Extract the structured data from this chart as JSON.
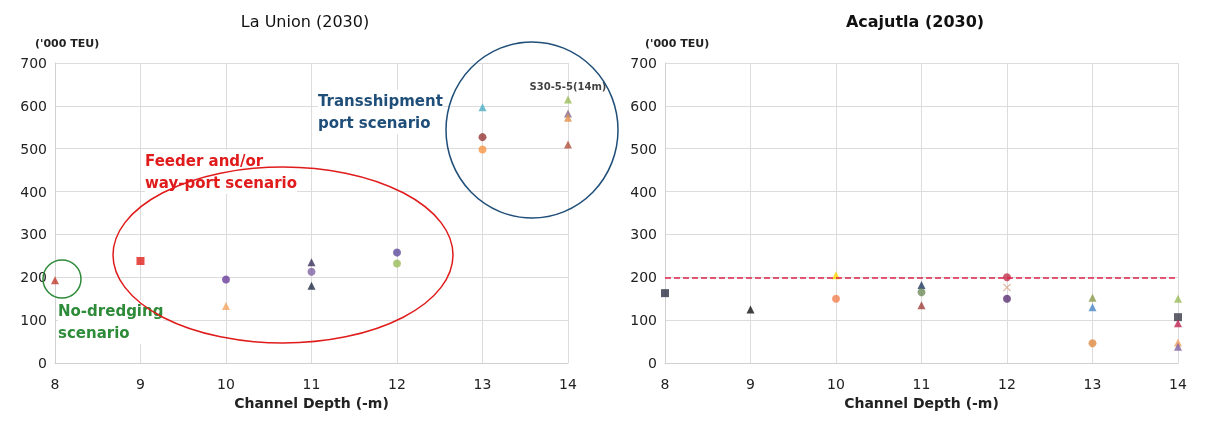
{
  "chart_data": [
    {
      "type": "scatter",
      "title": "La Union (2030)",
      "xlabel": "Channel Depth (-m)",
      "ylabel": "('000 TEU)",
      "xlim": [
        8,
        14
      ],
      "xticks": [
        8,
        9,
        10,
        11,
        12,
        13,
        14
      ],
      "ylim": [
        0,
        700
      ],
      "yticks": [
        0,
        100,
        200,
        300,
        400,
        500,
        600,
        700
      ],
      "grid": true,
      "annotations": [
        "Transshipment port scenario",
        "Feeder and/or way-port scenario",
        "No-dredging scenario",
        {
          "text": "S30-5-5(14m)",
          "x": 14,
          "y": 615
        }
      ],
      "series": [
        {
          "x": [
            8
          ],
          "values": [
            193
          ],
          "color": "#c0392b",
          "marker": "triangle"
        },
        {
          "x": [
            9
          ],
          "values": [
            238
          ],
          "color": "#e0201b",
          "marker": "square"
        },
        {
          "x": [
            10
          ],
          "values": [
            195
          ],
          "color": "#6a3d9a",
          "marker": "circle"
        },
        {
          "x": [
            10
          ],
          "values": [
            133
          ],
          "color": "#f4a460",
          "marker": "triangle"
        },
        {
          "x": [
            11
          ],
          "values": [
            235
          ],
          "color": "#3b2e5a",
          "marker": "triangle"
        },
        {
          "x": [
            11
          ],
          "values": [
            213
          ],
          "color": "#8064a2",
          "marker": "circle"
        },
        {
          "x": [
            11
          ],
          "values": [
            180
          ],
          "color": "#1f2a44",
          "marker": "triangle"
        },
        {
          "x": [
            12
          ],
          "values": [
            258
          ],
          "color": "#5b4a9b",
          "marker": "circle"
        },
        {
          "x": [
            12
          ],
          "values": [
            232
          ],
          "color": "#9bbb59",
          "marker": "circle"
        },
        {
          "x": [
            13
          ],
          "values": [
            597
          ],
          "color": "#4bacc6",
          "marker": "triangle"
        },
        {
          "x": [
            13
          ],
          "values": [
            527
          ],
          "color": "#943634",
          "marker": "circle"
        },
        {
          "x": [
            13
          ],
          "values": [
            498
          ],
          "color": "#f79646",
          "marker": "circle"
        },
        {
          "x": [
            14
          ],
          "values": [
            615
          ],
          "color": "#9bbb59",
          "marker": "triangle"
        },
        {
          "x": [
            14
          ],
          "values": [
            582
          ],
          "color": "#8b6a8a",
          "marker": "triangle"
        },
        {
          "x": [
            14
          ],
          "values": [
            572
          ],
          "color": "#e0904a",
          "marker": "triangle"
        },
        {
          "x": [
            14
          ],
          "values": [
            510
          ],
          "color": "#b0503c",
          "marker": "triangle"
        }
      ]
    },
    {
      "type": "scatter",
      "title": "Acajutla (2030)",
      "xlabel": "Channel Depth (-m)",
      "ylabel": "('000 TEU)",
      "xlim": [
        8,
        14
      ],
      "xticks": [
        8,
        9,
        10,
        11,
        12,
        13,
        14
      ],
      "ylim": [
        0,
        700
      ],
      "yticks": [
        0,
        100,
        200,
        300,
        400,
        500,
        600,
        700
      ],
      "grid": true,
      "ref_lines": [
        {
          "axis": "y",
          "value": 200,
          "color": "#e0204a",
          "line_style": "dashed"
        }
      ],
      "series": [
        {
          "x": [
            8
          ],
          "values": [
            163
          ],
          "color": "#2a2f45",
          "marker": "square"
        },
        {
          "x": [
            9
          ],
          "values": [
            125
          ],
          "color": "#111111",
          "marker": "triangle"
        },
        {
          "x": [
            10
          ],
          "values": [
            205
          ],
          "color": "#ffd700",
          "marker": "triangle"
        },
        {
          "x": [
            10
          ],
          "values": [
            150
          ],
          "color": "#f08050",
          "marker": "circle"
        },
        {
          "x": [
            11
          ],
          "values": [
            182
          ],
          "color": "#1f3a5f",
          "marker": "triangle"
        },
        {
          "x": [
            11
          ],
          "values": [
            165
          ],
          "color": "#6e8b5a",
          "marker": "circle"
        },
        {
          "x": [
            11
          ],
          "values": [
            135
          ],
          "color": "#a0403a",
          "marker": "triangle"
        },
        {
          "x": [
            12
          ],
          "values": [
            200
          ],
          "color": "#c0304a",
          "marker": "circle"
        },
        {
          "x": [
            12
          ],
          "values": [
            176
          ],
          "color": "#d2a080",
          "marker": "cross"
        },
        {
          "x": [
            12
          ],
          "values": [
            150
          ],
          "color": "#5a2e70",
          "marker": "circle"
        },
        {
          "x": [
            13
          ],
          "values": [
            152
          ],
          "color": "#8a9a4a",
          "marker": "triangle"
        },
        {
          "x": [
            13
          ],
          "values": [
            130
          ],
          "color": "#4a86c6",
          "marker": "triangle"
        },
        {
          "x": [
            13
          ],
          "values": [
            46
          ],
          "color": "#e08a40",
          "marker": "circle"
        },
        {
          "x": [
            14
          ],
          "values": [
            150
          ],
          "color": "#9bbb59",
          "marker": "triangle"
        },
        {
          "x": [
            14
          ],
          "values": [
            107
          ],
          "color": "#3a3a4a",
          "marker": "square"
        },
        {
          "x": [
            14
          ],
          "values": [
            93
          ],
          "color": "#c02050",
          "marker": "triangle"
        },
        {
          "x": [
            14
          ],
          "values": [
            48
          ],
          "color": "#f0a060",
          "marker": "triangle"
        },
        {
          "x": [
            14
          ],
          "values": [
            38
          ],
          "color": "#8060a0",
          "marker": "triangle"
        }
      ]
    }
  ]
}
